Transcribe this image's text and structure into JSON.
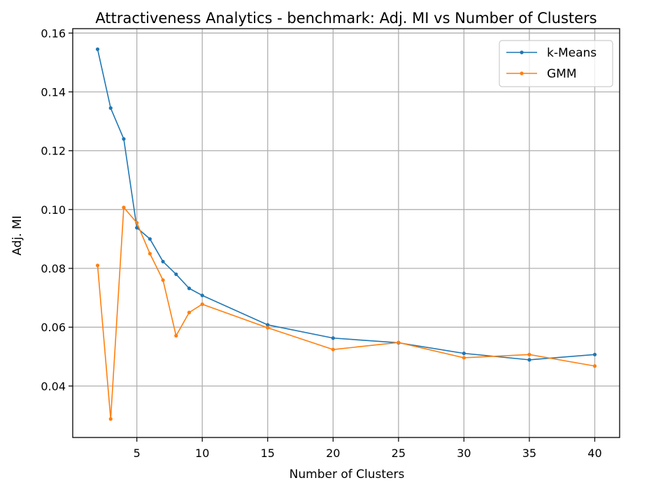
{
  "chart_data": {
    "type": "line",
    "title": "Attractiveness Analytics - benchmark: Adj. MI vs Number of Clusters",
    "xlabel": "Number of Clusters",
    "ylabel": "Adj. MI",
    "x": [
      2,
      3,
      4,
      5,
      6,
      7,
      8,
      9,
      10,
      15,
      20,
      25,
      30,
      35,
      40
    ],
    "xlim": [
      0.1,
      41.9
    ],
    "ylim": [
      0.0225,
      0.1615
    ],
    "xticks": [
      5,
      10,
      15,
      20,
      25,
      30,
      35,
      40
    ],
    "xtick_labels": [
      "5",
      "10",
      "15",
      "20",
      "25",
      "30",
      "35",
      "40"
    ],
    "yticks": [
      0.04,
      0.06,
      0.08,
      0.1,
      0.12,
      0.14,
      0.16
    ],
    "ytick_labels": [
      "0.04",
      "0.06",
      "0.08",
      "0.10",
      "0.12",
      "0.14",
      "0.16"
    ],
    "grid": true,
    "legend_position": "top-right",
    "series": [
      {
        "name": "k-Means",
        "color": "#1f77b4",
        "values": [
          0.1545,
          0.1345,
          0.124,
          0.0938,
          0.09,
          0.0823,
          0.078,
          0.0732,
          0.0708,
          0.0608,
          0.0563,
          0.0547,
          0.0511,
          0.0489,
          0.0507
        ]
      },
      {
        "name": "GMM",
        "color": "#ff7f0e",
        "values": [
          0.081,
          0.0288,
          0.1007,
          0.0955,
          0.085,
          0.076,
          0.0571,
          0.065,
          0.0678,
          0.0598,
          0.0524,
          0.0548,
          0.0496,
          0.0507,
          0.0468
        ]
      }
    ]
  }
}
